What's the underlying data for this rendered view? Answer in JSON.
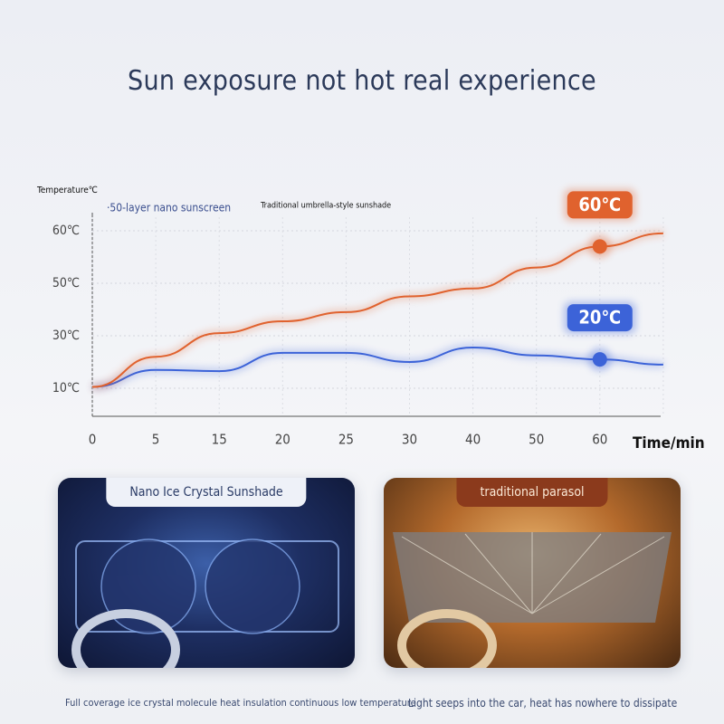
{
  "chart_data": {
    "type": "line",
    "title": "Sun exposure not hot real experience",
    "y_label": "Temperature℃",
    "x_label": "Time/min",
    "categories": [
      "0",
      "5",
      "15",
      "20",
      "25",
      "30",
      "40",
      "50",
      "60",
      null
    ],
    "series": [
      {
        "name": "·50-layer nano sunscreen",
        "color": "#3c63d8",
        "values": [
          10.5,
          17,
          16.5,
          23.5,
          23.5,
          20,
          25.5,
          22.5,
          21,
          19
        ]
      },
      {
        "name": "Traditional umbrella-style sunshade",
        "color": "#e0622e",
        "values": [
          10.5,
          22,
          31,
          35.5,
          39,
          45,
          48,
          53,
          57,
          59.5
        ]
      }
    ],
    "ylim": [
      0,
      65
    ],
    "yticks": [
      {
        "value": 10,
        "label": "10℃"
      },
      {
        "value": 30,
        "label": "30℃"
      },
      {
        "value": 50,
        "label": "50℃"
      },
      {
        "value": 60,
        "label": "60℃"
      }
    ],
    "grid": true,
    "annotations": [
      {
        "text": "60℃",
        "series": 1
      },
      {
        "text": "20℃",
        "series": 0
      }
    ]
  },
  "panels": [
    {
      "label": "Nano Ice Crystal Sunshade",
      "caption": "Full coverage ice crystal molecule heat insulation continuous low temperature"
    },
    {
      "label": "traditional parasol",
      "caption": "Light seeps into the car, heat has nowhere to dissipate"
    }
  ]
}
